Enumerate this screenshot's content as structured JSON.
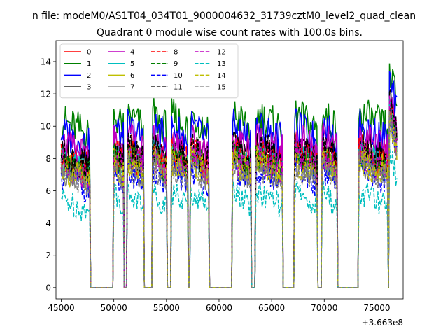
{
  "chart_data": {
    "type": "line",
    "suptitle": "n file: modeM0/AS1T04_034T01_9000004632_31739cztM0_level2_quad_clean",
    "title": "Quadrant 0 module wise count rates with 100.0s bins.",
    "x_offset_label": "+3.663e8",
    "xlim": [
      44500,
      77500
    ],
    "ylim": [
      -0.7,
      15.3
    ],
    "x_ticks": [
      45000,
      50000,
      55000,
      60000,
      65000,
      70000,
      75000
    ],
    "x_tick_labels": [
      "45000",
      "50000",
      "55000",
      "60000",
      "65000",
      "70000",
      "75000"
    ],
    "y_ticks": [
      0,
      2,
      4,
      6,
      8,
      10,
      12,
      14
    ],
    "y_tick_labels": [
      "0",
      "2",
      "4",
      "6",
      "8",
      "10",
      "12",
      "14"
    ],
    "legend_location": "upper-left",
    "legend_columns": 4,
    "intervals": [
      [
        45000,
        47700
      ],
      [
        50000,
        50900
      ],
      [
        51300,
        52800
      ],
      [
        53700,
        55000
      ],
      [
        55500,
        57000
      ],
      [
        57300,
        59000
      ],
      [
        61300,
        63000
      ],
      [
        63500,
        66000
      ],
      [
        67200,
        69300
      ],
      [
        69800,
        71200
      ],
      [
        73300,
        76000
      ],
      [
        76200,
        76900
      ]
    ],
    "series": [
      {
        "name": "0",
        "color": "#ff0000",
        "dash": "solid",
        "level": 8.3
      },
      {
        "name": "1",
        "color": "#008000",
        "dash": "solid",
        "level": 10.3
      },
      {
        "name": "2",
        "color": "#0000ff",
        "dash": "solid",
        "level": 9.6
      },
      {
        "name": "3",
        "color": "#000000",
        "dash": "solid",
        "level": 8.4
      },
      {
        "name": "4",
        "color": "#bf00bf",
        "dash": "solid",
        "level": 8.9
      },
      {
        "name": "5",
        "color": "#00bfbf",
        "dash": "solid",
        "level": 7.9
      },
      {
        "name": "6",
        "color": "#bfbf00",
        "dash": "solid",
        "level": 7.6
      },
      {
        "name": "7",
        "color": "#808080",
        "dash": "solid",
        "level": 7.3
      },
      {
        "name": "8",
        "color": "#ff0000",
        "dash": "dashed",
        "level": 8.0
      },
      {
        "name": "9",
        "color": "#008000",
        "dash": "dashed",
        "level": 7.8
      },
      {
        "name": "10",
        "color": "#0000ff",
        "dash": "dashed",
        "level": 6.9
      },
      {
        "name": "11",
        "color": "#000000",
        "dash": "dashed",
        "level": 8.2
      },
      {
        "name": "12",
        "color": "#bf00bf",
        "dash": "dashed",
        "level": 7.7
      },
      {
        "name": "13",
        "color": "#00bfbf",
        "dash": "dashed",
        "level": 5.5
      },
      {
        "name": "14",
        "color": "#bfbf00",
        "dash": "dashed",
        "level": 7.4
      },
      {
        "name": "15",
        "color": "#808080",
        "dash": "dashed",
        "level": 7.1
      }
    ]
  }
}
